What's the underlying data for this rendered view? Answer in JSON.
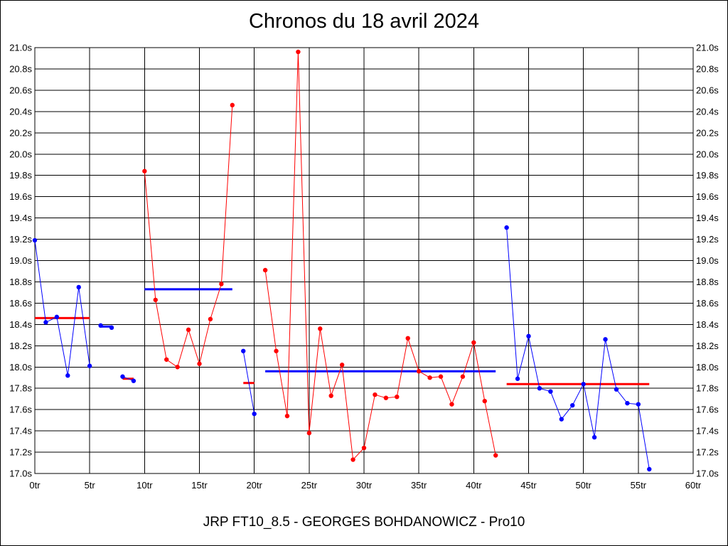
{
  "chart_data": {
    "type": "line",
    "title": "Chronos du 18 avril 2024",
    "subtitle": "JRP FT10_8.5 - GEORGES BOHDANOWICZ - Pro10",
    "xlabel": "",
    "ylabel": "",
    "xlim": [
      0,
      60
    ],
    "ylim": [
      17.0,
      21.0
    ],
    "x_ticks": [
      0,
      5,
      10,
      15,
      20,
      25,
      30,
      35,
      40,
      45,
      50,
      55,
      60
    ],
    "x_tick_labels": [
      "0tr",
      "5tr",
      "10tr",
      "15tr",
      "20tr",
      "25tr",
      "30tr",
      "35tr",
      "40tr",
      "45tr",
      "50tr",
      "55tr",
      "60tr"
    ],
    "y_ticks": [
      17.0,
      17.2,
      17.4,
      17.6,
      17.8,
      18.0,
      18.2,
      18.4,
      18.6,
      18.8,
      19.0,
      19.2,
      19.4,
      19.6,
      19.8,
      20.0,
      20.2,
      20.4,
      20.6,
      20.8,
      21.0
    ],
    "y_tick_labels": [
      "17.0s",
      "17.2s",
      "17.4s",
      "17.6s",
      "17.8s",
      "18.0s",
      "18.2s",
      "18.4s",
      "18.6s",
      "18.8s",
      "19.0s",
      "19.2s",
      "19.4s",
      "19.6s",
      "19.8s",
      "20.0s",
      "20.2s",
      "20.4s",
      "20.6s",
      "20.8s",
      "21.0s"
    ],
    "grid": true,
    "series": [
      {
        "color": "#0000ff",
        "x": [
          0,
          1,
          2,
          3,
          4,
          5
        ],
        "y": [
          19.19,
          18.42,
          18.47,
          17.92,
          18.75,
          18.01
        ]
      },
      {
        "color": "#0000ff",
        "x": [
          6,
          7
        ],
        "y": [
          18.39,
          18.37
        ]
      },
      {
        "color": "#0000ff",
        "x": [
          8,
          9
        ],
        "y": [
          17.91,
          17.87
        ]
      },
      {
        "color": "#ff0000",
        "x": [
          10,
          11,
          12,
          13,
          14,
          15,
          16,
          17,
          18
        ],
        "y": [
          19.84,
          18.63,
          18.07,
          18.0,
          18.35,
          18.03,
          18.45,
          18.78,
          20.46
        ]
      },
      {
        "color": "#0000ff",
        "x": [
          19,
          20
        ],
        "y": [
          18.15,
          17.56
        ]
      },
      {
        "color": "#ff0000",
        "x": [
          21,
          22,
          23,
          24,
          25,
          26,
          27,
          28,
          29,
          30,
          31,
          32,
          33,
          34,
          35,
          36,
          37,
          38,
          39,
          40,
          41,
          42
        ],
        "y": [
          18.91,
          18.15,
          17.54,
          20.96,
          17.38,
          18.36,
          17.73,
          18.02,
          17.13,
          17.24,
          17.74,
          17.71,
          17.72,
          18.27,
          17.96,
          17.9,
          17.91,
          17.65,
          17.91,
          18.23,
          17.68,
          17.17
        ]
      },
      {
        "color": "#0000ff",
        "x": [
          43,
          44,
          45,
          46,
          47,
          48,
          49,
          50,
          51,
          52,
          53,
          54,
          55,
          56
        ],
        "y": [
          19.31,
          17.89,
          18.29,
          17.8,
          17.77,
          17.51,
          17.64,
          17.84,
          17.34,
          18.26,
          17.79,
          17.66,
          17.65,
          17.04
        ]
      }
    ],
    "averages": [
      {
        "color": "#ff0000",
        "x_start": 0,
        "x_end": 5,
        "y": 18.46
      },
      {
        "color": "#0000ff",
        "x_start": 6,
        "x_end": 7,
        "y": 18.38
      },
      {
        "color": "#ff0000",
        "x_start": 8,
        "x_end": 9,
        "y": 17.89
      },
      {
        "color": "#0000ff",
        "x_start": 10,
        "x_end": 18,
        "y": 18.73
      },
      {
        "color": "#ff0000",
        "x_start": 19,
        "x_end": 20,
        "y": 17.85
      },
      {
        "color": "#0000ff",
        "x_start": 21,
        "x_end": 42,
        "y": 17.96
      },
      {
        "color": "#ff0000",
        "x_start": 43,
        "x_end": 56,
        "y": 17.84
      }
    ]
  }
}
